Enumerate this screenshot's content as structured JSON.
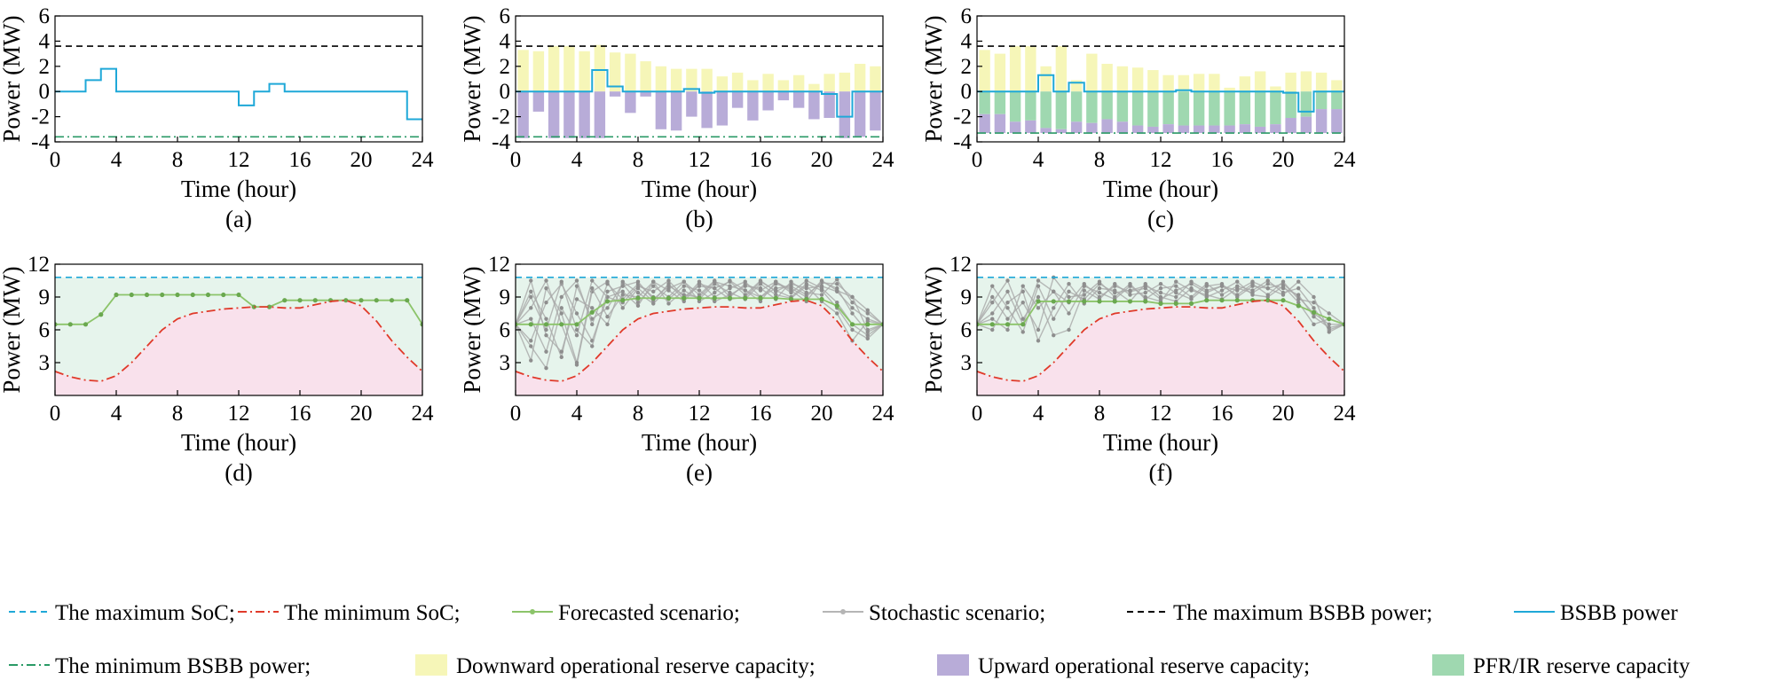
{
  "legend": [
    {
      "key": "max_soc",
      "label": "The maximum SoC;",
      "style": "dash",
      "color": "#1fa8d8"
    },
    {
      "key": "min_soc",
      "label": "The minimum SoC;",
      "style": "dashdot",
      "color": "#e03a2a"
    },
    {
      "key": "forecast",
      "label": "Forecasted scenario;",
      "style": "line-dot",
      "color": "#8cc46a"
    },
    {
      "key": "stochastic",
      "label": "Stochastic scenario;",
      "style": "line-dot",
      "color": "#b5b5b5"
    },
    {
      "key": "max_bsbb",
      "label": "The maximum BSBB power;",
      "style": "dash",
      "color": "#000000"
    },
    {
      "key": "bsbb",
      "label": "BSBB power",
      "style": "solid",
      "color": "#1fa8d8"
    },
    {
      "key": "min_bsbb",
      "label": "The minimum BSBB power;",
      "style": "dashdot",
      "color": "#2a9a66"
    },
    {
      "key": "down_res",
      "label": "Downward operational reserve capacity;",
      "style": "patch",
      "color": "#f6f6b8"
    },
    {
      "key": "up_res",
      "label": "Upward operational  reserve capacity;",
      "style": "patch",
      "color": "#b8acd8"
    },
    {
      "key": "pfr",
      "label": "PFR/IR reserve capacity",
      "style": "patch",
      "color": "#9fd8b0"
    }
  ],
  "colors": {
    "bsbb": "#1fa8d8",
    "max_dash": "#000000",
    "min_dashdot": "#2a9a66",
    "down": "#f6f6b8",
    "up": "#b8acd8",
    "pfr": "#9fd8b0",
    "feasible": "#e6f4ec",
    "infeasible": "#f9e1ec",
    "max_soc": "#1fa8d8",
    "min_soc": "#e03a2a",
    "forecast": "#8cc46a",
    "stochastic": "#a9a9a9"
  },
  "chart_data": [
    {
      "panel": "(a)",
      "type": "line",
      "xlabel": "Time (hour)",
      "ylabel": "Power (MW)",
      "xlim": [
        0,
        24
      ],
      "ylim": [
        -4,
        6
      ],
      "xticks": [
        "0",
        "4",
        "8",
        "12",
        "16",
        "20",
        "24"
      ],
      "yticks": [
        "-4",
        "-2",
        "0",
        "2",
        "4",
        "6"
      ],
      "max_power": 3.6,
      "min_power": -3.6,
      "bsbb_power": [
        0,
        0,
        0.9,
        1.8,
        0,
        0,
        0,
        0,
        0,
        0,
        0,
        0,
        -1.1,
        0,
        0.6,
        0,
        0,
        0,
        0,
        0,
        0,
        0,
        0,
        -2.2
      ]
    },
    {
      "panel": "(b)",
      "type": "bar",
      "xlabel": "Time (hour)",
      "ylabel": "Power (MW)",
      "xlim": [
        0,
        24
      ],
      "ylim": [
        -4,
        6
      ],
      "xticks": [
        "0",
        "4",
        "8",
        "12",
        "16",
        "20",
        "24"
      ],
      "yticks": [
        "-4",
        "-2",
        "0",
        "2",
        "4",
        "6"
      ],
      "max_power": 3.6,
      "min_power": -3.6,
      "bsbb_power": [
        0,
        0,
        0,
        0,
        0,
        1.7,
        0.4,
        0,
        0,
        0,
        0,
        0.2,
        -0.1,
        0,
        0,
        0,
        0,
        0,
        0,
        0,
        -0.2,
        -2.0,
        0,
        0
      ],
      "downward_reserve": [
        3.3,
        3.2,
        3.6,
        3.6,
        3.2,
        3.7,
        3.1,
        3.0,
        2.4,
        2.0,
        1.8,
        1.8,
        1.8,
        1.2,
        1.5,
        0.9,
        1.4,
        0.9,
        1.3,
        0.6,
        1.4,
        1.5,
        2.2,
        2.0
      ],
      "upward_reserve": [
        3.7,
        1.6,
        3.7,
        3.7,
        3.7,
        3.7,
        0.4,
        1.7,
        0.4,
        3.0,
        3.1,
        2.0,
        2.9,
        2.7,
        1.3,
        2.3,
        1.5,
        0.7,
        1.3,
        2.2,
        2.1,
        3.7,
        3.6,
        3.1
      ]
    },
    {
      "panel": "(c)",
      "type": "bar",
      "xlabel": "Time (hour)",
      "ylabel": "Power (MW)",
      "xlim": [
        0,
        24
      ],
      "ylim": [
        -4,
        6
      ],
      "xticks": [
        "0",
        "4",
        "8",
        "12",
        "16",
        "20",
        "24"
      ],
      "yticks": [
        "-4",
        "-2",
        "0",
        "2",
        "4",
        "6"
      ],
      "max_power": 3.6,
      "min_power": -3.3,
      "bsbb_power": [
        0,
        0,
        0,
        0,
        1.3,
        0,
        0.7,
        0,
        0,
        0,
        0,
        0,
        0,
        0.1,
        0,
        0,
        0,
        0,
        0,
        0,
        -0.1,
        -1.6,
        0,
        0
      ],
      "downward_reserve": [
        3.3,
        3.0,
        3.6,
        3.6,
        2.0,
        3.6,
        0.9,
        3.0,
        2.2,
        2.0,
        1.9,
        1.7,
        1.3,
        1.3,
        1.4,
        1.4,
        0.3,
        1.2,
        1.6,
        0.4,
        1.5,
        1.6,
        1.5,
        0.9
      ],
      "upward_reserve": [
        1.5,
        1.5,
        0.9,
        1.0,
        0.4,
        0.3,
        0.9,
        0.8,
        1.1,
        0.9,
        0.6,
        0.5,
        0.7,
        0.6,
        0.6,
        0.6,
        0.6,
        0.7,
        0.5,
        0.7,
        1.2,
        1.3,
        1.9,
        1.9
      ],
      "pfr_ir_reserve": [
        1.8,
        1.8,
        2.4,
        2.3,
        2.9,
        3.0,
        2.4,
        2.5,
        2.2,
        2.4,
        2.7,
        2.8,
        2.6,
        2.7,
        2.7,
        2.7,
        2.7,
        2.6,
        2.8,
        2.6,
        2.1,
        2.0,
        1.4,
        1.4
      ]
    },
    {
      "panel": "(d)",
      "type": "line",
      "xlabel": "Time (hour)",
      "ylabel": "Power (MW)",
      "xlim": [
        0,
        24
      ],
      "ylim": [
        0,
        12
      ],
      "xticks": [
        "0",
        "4",
        "8",
        "12",
        "16",
        "20",
        "24"
      ],
      "yticks": [
        "3",
        "6",
        "9",
        "12"
      ],
      "max_soc": 10.8,
      "min_soc": [
        [
          0,
          2.2
        ],
        [
          1,
          1.7
        ],
        [
          2,
          1.4
        ],
        [
          3,
          1.3
        ],
        [
          4,
          1.8
        ],
        [
          5,
          3.0
        ],
        [
          6,
          4.5
        ],
        [
          7,
          6.0
        ],
        [
          8,
          7.0
        ],
        [
          9,
          7.5
        ],
        [
          10,
          7.7
        ],
        [
          11,
          7.9
        ],
        [
          12,
          8.0
        ],
        [
          13,
          8.1
        ],
        [
          14,
          8.1
        ],
        [
          15,
          8.0
        ],
        [
          16,
          8.0
        ],
        [
          17,
          8.3
        ],
        [
          18,
          8.6
        ],
        [
          19,
          8.7
        ],
        [
          20,
          8.2
        ],
        [
          21,
          6.8
        ],
        [
          22,
          5.0
        ],
        [
          23,
          3.5
        ],
        [
          24,
          2.2
        ]
      ],
      "forecasted_scenario": [
        6.5,
        6.5,
        6.5,
        7.4,
        9.2,
        9.2,
        9.2,
        9.2,
        9.2,
        9.2,
        9.2,
        9.2,
        9.2,
        8.1,
        8.1,
        8.7,
        8.7,
        8.7,
        8.7,
        8.7,
        8.7,
        8.7,
        8.7,
        8.7,
        6.5
      ]
    },
    {
      "panel": "(e)",
      "type": "line",
      "xlabel": "Time (hour)",
      "ylabel": "Power (MW)",
      "xlim": [
        0,
        24
      ],
      "ylim": [
        0,
        12
      ],
      "xticks": [
        "0",
        "4",
        "8",
        "12",
        "16",
        "20",
        "24"
      ],
      "yticks": [
        "3",
        "6",
        "9",
        "12"
      ],
      "max_soc": 10.8,
      "min_soc": [
        [
          0,
          2.2
        ],
        [
          1,
          1.7
        ],
        [
          2,
          1.4
        ],
        [
          3,
          1.3
        ],
        [
          4,
          1.8
        ],
        [
          5,
          3.0
        ],
        [
          6,
          4.5
        ],
        [
          7,
          6.0
        ],
        [
          8,
          7.0
        ],
        [
          9,
          7.5
        ],
        [
          10,
          7.7
        ],
        [
          11,
          7.9
        ],
        [
          12,
          8.0
        ],
        [
          13,
          8.1
        ],
        [
          14,
          8.1
        ],
        [
          15,
          8.0
        ],
        [
          16,
          8.0
        ],
        [
          17,
          8.3
        ],
        [
          18,
          8.6
        ],
        [
          19,
          8.7
        ],
        [
          20,
          8.2
        ],
        [
          21,
          6.8
        ],
        [
          22,
          5.0
        ],
        [
          23,
          3.5
        ],
        [
          24,
          2.2
        ]
      ],
      "forecasted_scenario": [
        6.5,
        6.5,
        6.5,
        6.5,
        6.5,
        7.6,
        8.6,
        8.7,
        8.9,
        8.9,
        8.9,
        8.9,
        8.9,
        8.9,
        8.9,
        8.9,
        8.9,
        8.9,
        8.8,
        8.8,
        8.8,
        8.2,
        6.5,
        6.5,
        6.5
      ],
      "stochastic_scenarios": [
        [
          6.5,
          4.5,
          2.5,
          8.0,
          5.5,
          10.5,
          9.0,
          8.5,
          10.0,
          9.5,
          10.5,
          9.0,
          10.0,
          9.8,
          10.4,
          9.2,
          10.5,
          9.5,
          10.2,
          9.8,
          10.0,
          9.5,
          8.0,
          7.0,
          6.5
        ],
        [
          6.5,
          9.5,
          7.0,
          3.5,
          10.0,
          7.0,
          8.0,
          10.2,
          8.5,
          10.0,
          9.0,
          10.4,
          9.2,
          10.5,
          9.0,
          10.2,
          9.6,
          10.4,
          9.4,
          10.5,
          9.8,
          8.5,
          6.5,
          5.5,
          6.5
        ],
        [
          6.5,
          8.0,
          10.5,
          6.5,
          2.8,
          9.5,
          10.4,
          8.0,
          9.8,
          8.6,
          10.2,
          8.8,
          10.4,
          9.0,
          9.8,
          10.4,
          9.0,
          9.8,
          10.0,
          9.2,
          10.3,
          10.2,
          9.0,
          6.0,
          6.5
        ],
        [
          6.5,
          5.0,
          8.5,
          10.2,
          7.5,
          5.0,
          9.0,
          9.5,
          8.2,
          10.4,
          8.4,
          9.6,
          8.8,
          10.2,
          9.4,
          8.8,
          10.2,
          9.2,
          8.9,
          10.0,
          8.6,
          7.5,
          5.0,
          6.8,
          6.5
        ],
        [
          6.5,
          10.5,
          5.5,
          4.0,
          8.8,
          8.0,
          6.5,
          10.4,
          9.4,
          8.4,
          9.8,
          10.4,
          8.6,
          9.4,
          10.5,
          9.6,
          8.6,
          10.4,
          9.6,
          8.6,
          10.4,
          9.8,
          7.5,
          5.8,
          6.5
        ],
        [
          6.5,
          7.0,
          4.0,
          9.0,
          10.5,
          6.5,
          10.2,
          8.8,
          10.2,
          9.0,
          8.8,
          10.0,
          9.6,
          8.6,
          9.2,
          10.0,
          9.8,
          8.8,
          10.4,
          9.4,
          9.2,
          10.6,
          8.5,
          7.5,
          6.5
        ],
        [
          6.5,
          3.2,
          9.8,
          7.5,
          3.0,
          9.8,
          7.2,
          9.2,
          9.0,
          10.4,
          9.6,
          8.6,
          10.2,
          9.8,
          8.8,
          9.0,
          10.4,
          9.6,
          9.0,
          10.2,
          9.6,
          8.0,
          6.0,
          5.2,
          6.5
        ],
        [
          6.5,
          9.0,
          6.0,
          10.4,
          6.0,
          4.5,
          9.5,
          10.0,
          10.4,
          8.8,
          10.0,
          9.2,
          9.0,
          10.4,
          10.0,
          9.6,
          9.0,
          10.2,
          9.8,
          9.0,
          10.5,
          9.6,
          9.0,
          7.8,
          6.5
        ]
      ]
    },
    {
      "panel": "(f)",
      "type": "line",
      "xlabel": "Time (hour)",
      "ylabel": "Power (MW)",
      "xlim": [
        0,
        24
      ],
      "ylim": [
        0,
        12
      ],
      "xticks": [
        "0",
        "4",
        "8",
        "12",
        "16",
        "20",
        "24"
      ],
      "yticks": [
        "3",
        "6",
        "9",
        "12"
      ],
      "max_soc": 10.8,
      "min_soc": [
        [
          0,
          2.2
        ],
        [
          1,
          1.7
        ],
        [
          2,
          1.4
        ],
        [
          3,
          1.3
        ],
        [
          4,
          1.8
        ],
        [
          5,
          3.0
        ],
        [
          6,
          4.5
        ],
        [
          7,
          6.0
        ],
        [
          8,
          7.0
        ],
        [
          9,
          7.5
        ],
        [
          10,
          7.7
        ],
        [
          11,
          7.9
        ],
        [
          12,
          8.0
        ],
        [
          13,
          8.1
        ],
        [
          14,
          8.1
        ],
        [
          15,
          8.0
        ],
        [
          16,
          8.0
        ],
        [
          17,
          8.3
        ],
        [
          18,
          8.6
        ],
        [
          19,
          8.7
        ],
        [
          20,
          8.2
        ],
        [
          21,
          6.8
        ],
        [
          22,
          5.0
        ],
        [
          23,
          3.5
        ],
        [
          24,
          2.2
        ]
      ],
      "forecasted_scenario": [
        6.5,
        6.5,
        6.5,
        6.5,
        8.6,
        8.6,
        8.6,
        8.6,
        8.6,
        8.6,
        8.6,
        8.6,
        8.4,
        8.4,
        8.4,
        8.7,
        8.7,
        8.7,
        8.7,
        8.7,
        8.7,
        8.2,
        7.6,
        7.0,
        6.5
      ],
      "stochastic_scenarios": [
        [
          6.5,
          7.5,
          9.5,
          6.5,
          10.5,
          9.5,
          8.5,
          10.2,
          9.0,
          10.0,
          9.5,
          9.8,
          8.8,
          9.6,
          10.2,
          9.4,
          10.0,
          9.6,
          10.4,
          9.8,
          10.2,
          9.0,
          7.5,
          6.5,
          6.5
        ],
        [
          6.5,
          9.0,
          7.0,
          8.5,
          6.0,
          10.8,
          9.0,
          9.2,
          10.4,
          9.0,
          10.2,
          8.8,
          9.8,
          10.0,
          9.0,
          10.2,
          9.2,
          10.0,
          9.6,
          10.5,
          9.4,
          9.8,
          8.0,
          6.0,
          6.5
        ],
        [
          6.5,
          6.0,
          8.5,
          9.5,
          5.0,
          8.0,
          10.2,
          8.4,
          9.8,
          9.6,
          8.6,
          10.2,
          9.0,
          8.6,
          9.8,
          9.0,
          9.6,
          10.4,
          9.2,
          9.0,
          10.0,
          8.5,
          6.5,
          7.0,
          6.5
        ],
        [
          6.5,
          8.5,
          10.5,
          7.0,
          9.0,
          5.5,
          6.0,
          9.6,
          8.8,
          10.2,
          9.2,
          9.4,
          10.2,
          9.4,
          8.8,
          10.0,
          10.2,
          9.0,
          10.0,
          9.8,
          9.2,
          10.4,
          9.0,
          5.8,
          6.5
        ],
        [
          6.5,
          7.0,
          6.0,
          10.0,
          8.0,
          9.5,
          7.5,
          10.0,
          9.4,
          8.8,
          10.0,
          9.0,
          8.6,
          10.4,
          9.6,
          9.2,
          8.8,
          9.8,
          9.4,
          10.2,
          9.8,
          9.2,
          7.2,
          6.2,
          6.5
        ],
        [
          6.5,
          10.0,
          8.0,
          5.8,
          10.0,
          7.0,
          9.5,
          8.8,
          10.2,
          9.4,
          9.6,
          10.0,
          9.4,
          9.0,
          10.4,
          9.6,
          10.0,
          9.2,
          10.2,
          9.2,
          10.4,
          8.8,
          8.5,
          7.5,
          6.5
        ]
      ]
    }
  ],
  "captions": [
    "(a)",
    "(b)",
    "(c)",
    "(d)",
    "(e)",
    "(f)"
  ]
}
